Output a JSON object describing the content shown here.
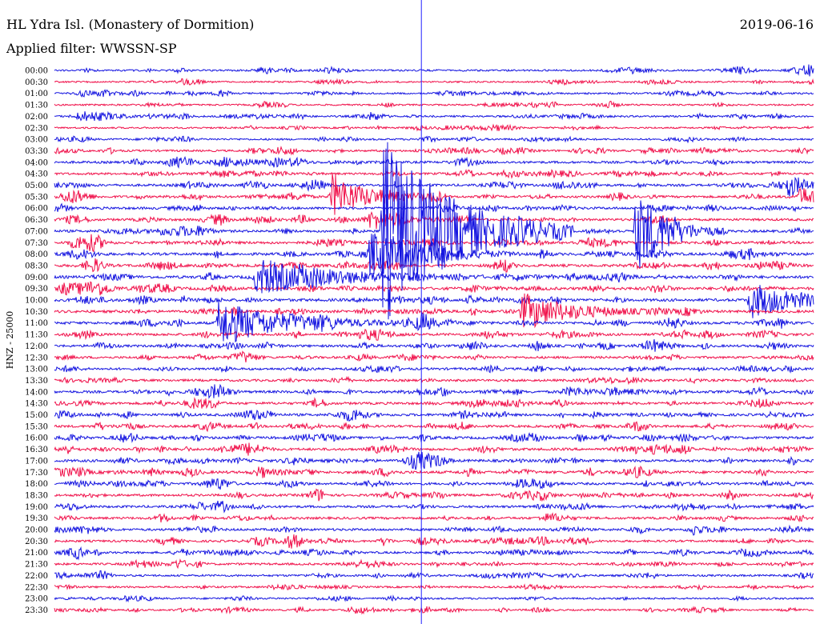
{
  "header": {
    "station": "HL Ydra Isl. (Monastery of Dormition)",
    "date": "2019-06-16",
    "filter": "Applied filter: WWSSN-SP"
  },
  "axis": {
    "ylabel": "HNZ - 25000"
  },
  "colors": {
    "trace_a": "#1414e0",
    "trace_b": "#f0104a",
    "marker": "#2020ff",
    "text": "#000000",
    "background": "#ffffff"
  },
  "chart_data": {
    "type": "line",
    "title": "HL Ydra Isl. (Monastery of Dormition)",
    "subtitle": "Applied filter: WWSSN-SP",
    "ylabel": "HNZ - 25000",
    "row_interval_minutes": 30,
    "color_cycle": [
      "blue",
      "red"
    ],
    "rows": [
      "00:00",
      "00:30",
      "01:00",
      "01:30",
      "02:00",
      "02:30",
      "03:00",
      "03:30",
      "04:00",
      "04:30",
      "05:00",
      "05:30",
      "06:00",
      "06:30",
      "07:00",
      "07:30",
      "08:00",
      "08:30",
      "09:00",
      "09:30",
      "10:00",
      "10:30",
      "11:00",
      "11:30",
      "12:00",
      "12:30",
      "13:00",
      "13:30",
      "14:00",
      "14:30",
      "15:00",
      "15:30",
      "16:00",
      "16:30",
      "17:00",
      "17:30",
      "18:00",
      "18:30",
      "19:00",
      "19:30",
      "20:00",
      "20:30",
      "21:00",
      "21:30",
      "22:00",
      "22:30",
      "23:00",
      "23:30"
    ],
    "noise_level": [
      0.5,
      0.4,
      0.5,
      0.4,
      0.5,
      0.4,
      0.5,
      0.6,
      0.8,
      0.7,
      0.8,
      0.8,
      0.9,
      0.8,
      0.9,
      1.0,
      1.0,
      1.0,
      1.1,
      1.1,
      1.1,
      1.0,
      1.0,
      0.9,
      0.8,
      0.8,
      0.8,
      0.8,
      0.9,
      0.9,
      0.9,
      0.8,
      0.9,
      0.9,
      1.0,
      1.0,
      0.8,
      0.8,
      0.8,
      0.8,
      0.8,
      0.7,
      0.7,
      0.7,
      0.6,
      0.5,
      0.5,
      0.4
    ],
    "events": [
      {
        "row": "06:30",
        "minute": 12.5,
        "amplitude": 9,
        "duration_minutes": 1.5
      },
      {
        "row": "07:00",
        "minute": 13.0,
        "amplitude": 120,
        "duration_minutes": 2.5
      },
      {
        "row": "07:00",
        "minute": 23.0,
        "amplitude": 50,
        "duration_minutes": 1.2
      },
      {
        "row": "05:30",
        "minute": 11.0,
        "amplitude": 26,
        "duration_minutes": 1.5
      },
      {
        "row": "09:00",
        "minute": 8.0,
        "amplitude": 22,
        "duration_minutes": 3.0
      },
      {
        "row": "08:00",
        "minute": 12.5,
        "amplitude": 30,
        "duration_minutes": 2.0
      },
      {
        "row": "10:00",
        "minute": 27.5,
        "amplitude": 22,
        "duration_minutes": 2.0
      },
      {
        "row": "11:00",
        "minute": 6.5,
        "amplitude": 28,
        "duration_minutes": 2.5
      },
      {
        "row": "10:30",
        "minute": 18.5,
        "amplitude": 22,
        "duration_minutes": 2.0
      },
      {
        "row": "05:00",
        "minute": 29.0,
        "amplitude": 14,
        "duration_minutes": 0.8
      },
      {
        "row": "05:30",
        "minute": 29.5,
        "amplitude": 12,
        "duration_minutes": 0.8
      }
    ],
    "marker_minute": 14.5,
    "grid": false,
    "legend": "none"
  }
}
